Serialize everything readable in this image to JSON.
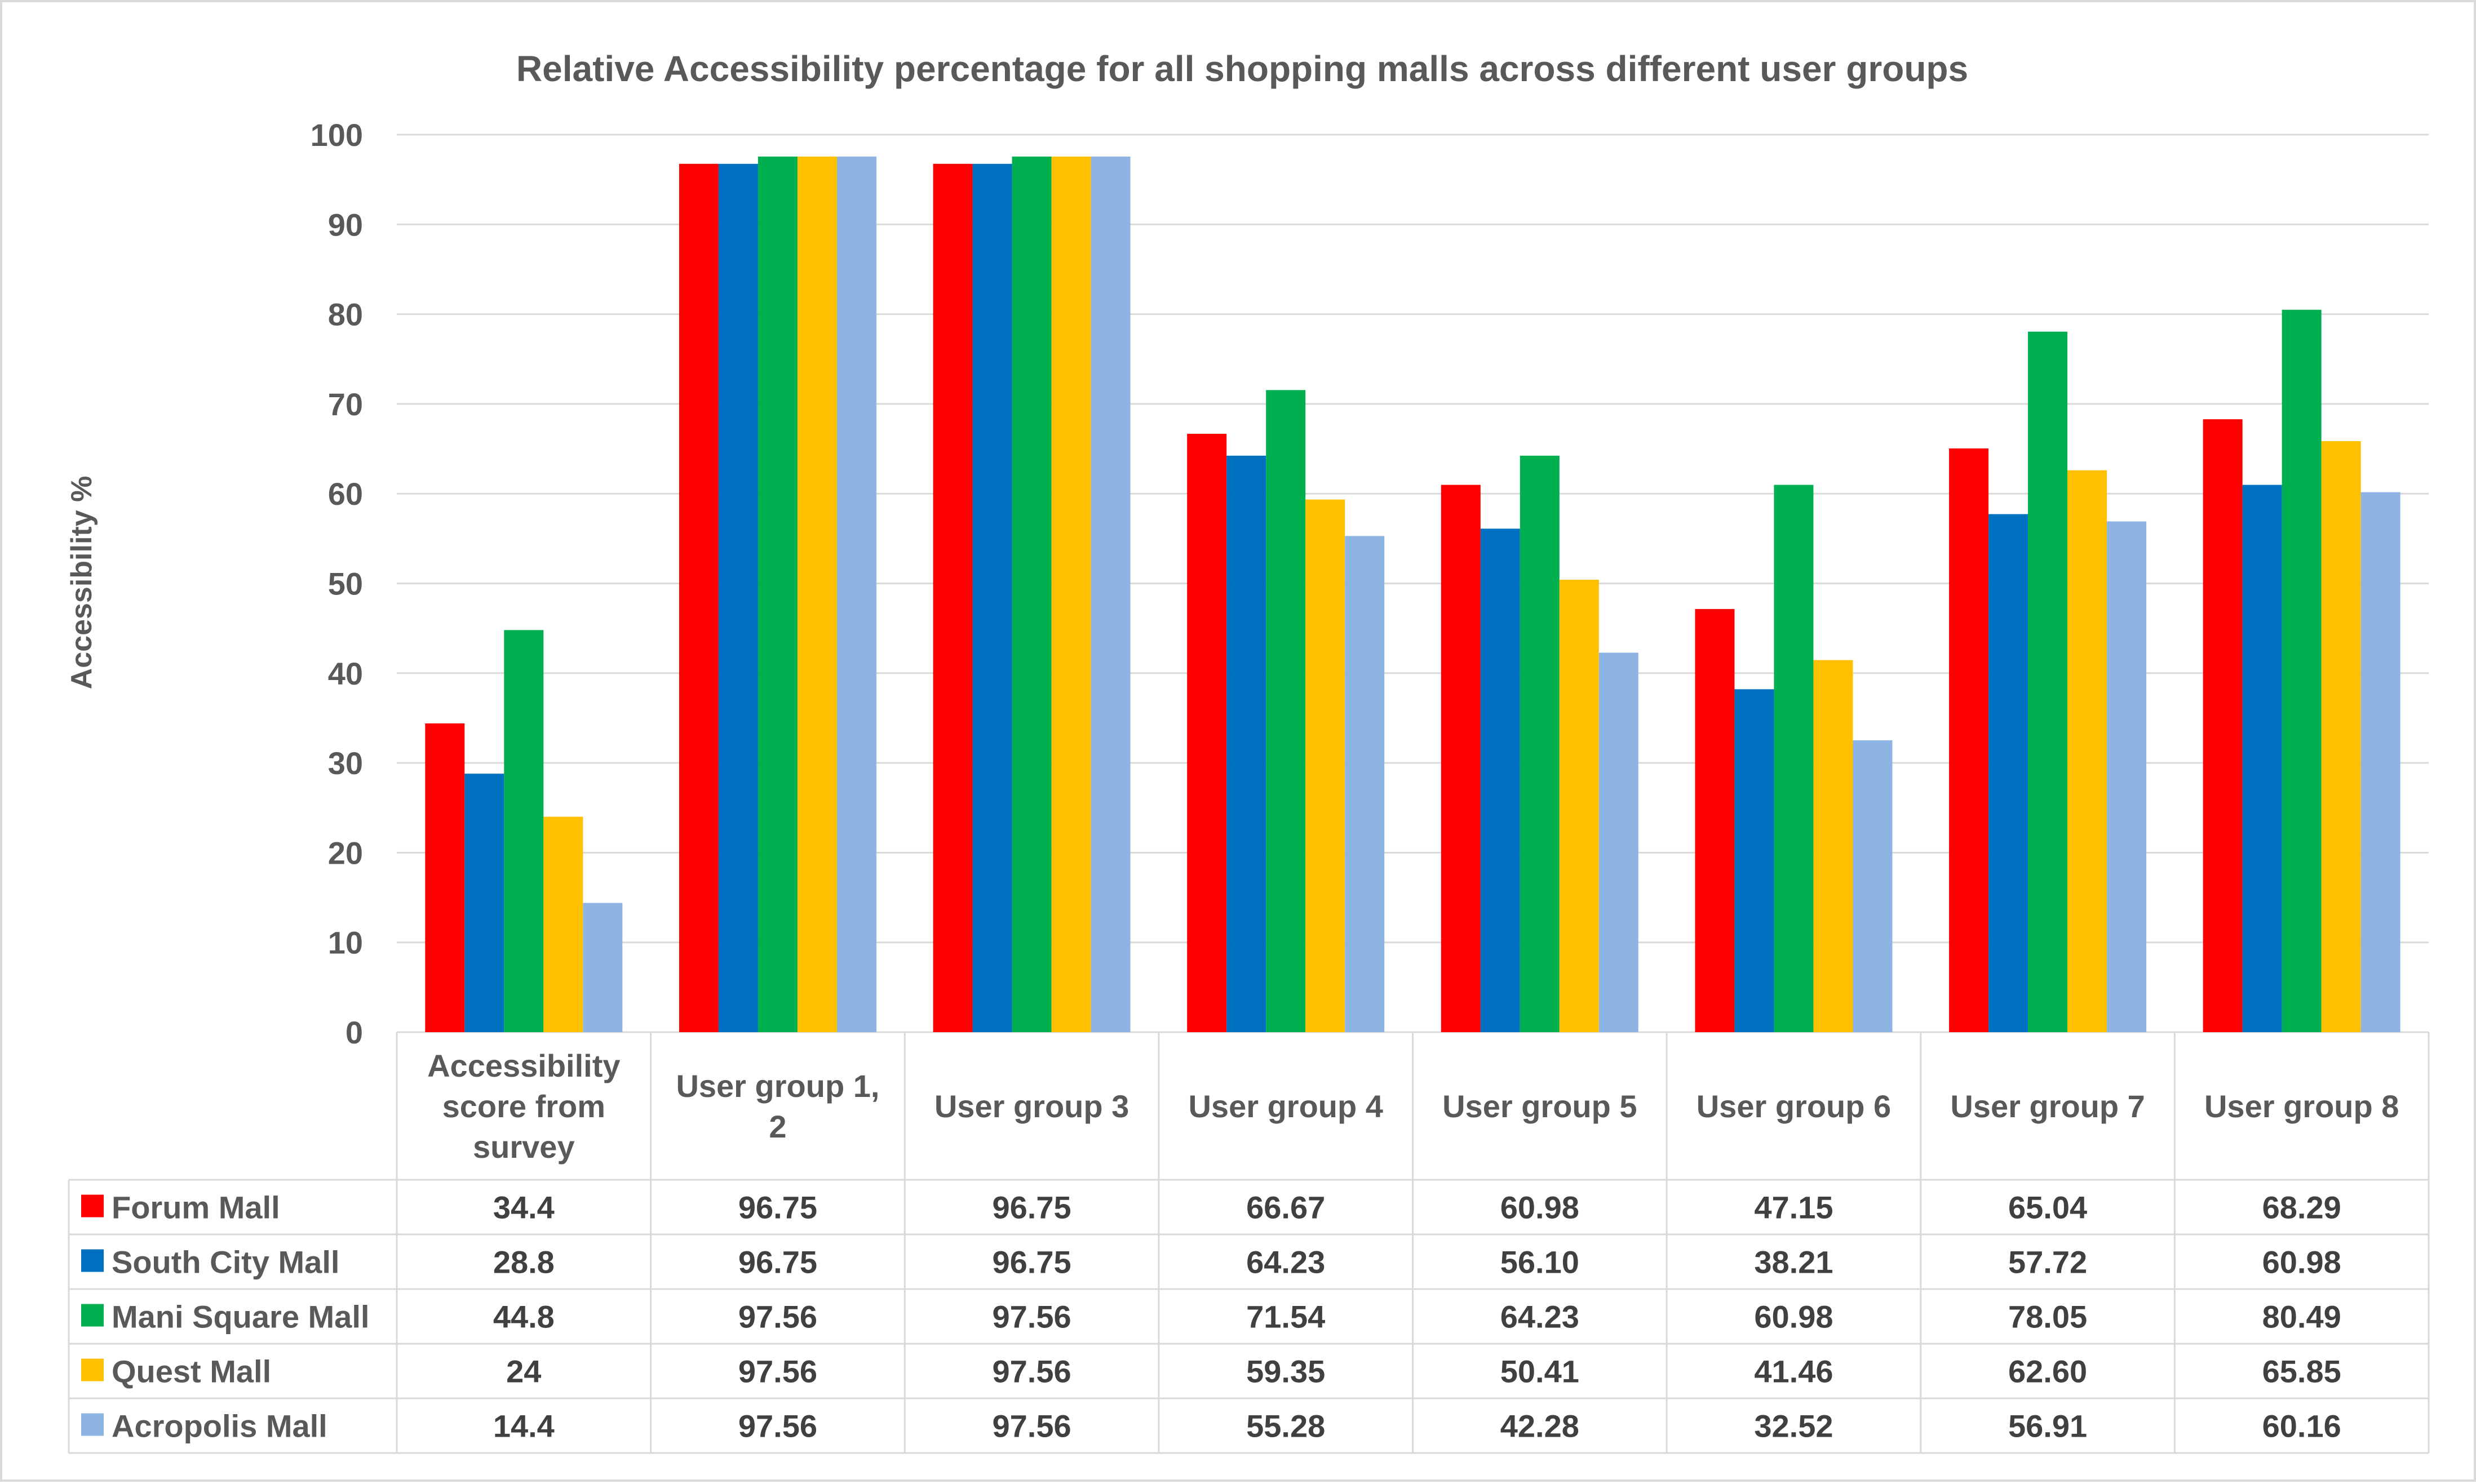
{
  "chart_data": {
    "type": "bar",
    "title": "Relative Accessibility percentage for all shopping malls across different user groups",
    "ylabel": "Accessibility %",
    "xlabel": "",
    "ylim": [
      0,
      100
    ],
    "yticks": [
      "0",
      "10",
      "20",
      "30",
      "40",
      "50",
      "60",
      "70",
      "80",
      "90",
      "100"
    ],
    "grid": true,
    "legend_placement": "data-table",
    "categories": [
      [
        "Accessibility",
        "score from",
        "survey"
      ],
      [
        "User group 1,",
        "2"
      ],
      [
        "User group 3"
      ],
      [
        "User group 4"
      ],
      [
        "User group 5"
      ],
      [
        "User group 6"
      ],
      [
        "User group 7"
      ],
      [
        "User group 8"
      ]
    ],
    "series": [
      {
        "name": "Forum Mall",
        "color": "#ff0000",
        "values": [
          34.4,
          96.75,
          96.75,
          66.67,
          60.98,
          47.15,
          65.04,
          68.29
        ],
        "labels": [
          "34.4",
          "96.75",
          "96.75",
          "66.67",
          "60.98",
          "47.15",
          "65.04",
          "68.29"
        ]
      },
      {
        "name": "South City Mall",
        "color": "#0070c0",
        "values": [
          28.8,
          96.75,
          96.75,
          64.23,
          56.1,
          38.21,
          57.72,
          60.98
        ],
        "labels": [
          "28.8",
          "96.75",
          "96.75",
          "64.23",
          "56.10",
          "38.21",
          "57.72",
          "60.98"
        ]
      },
      {
        "name": "Mani Square Mall",
        "color": "#00b050",
        "values": [
          44.8,
          97.56,
          97.56,
          71.54,
          64.23,
          60.98,
          78.05,
          80.49
        ],
        "labels": [
          "44.8",
          "97.56",
          "97.56",
          "71.54",
          "64.23",
          "60.98",
          "78.05",
          "80.49"
        ]
      },
      {
        "name": "Quest Mall",
        "color": "#ffc000",
        "values": [
          24,
          97.56,
          97.56,
          59.35,
          50.41,
          41.46,
          62.6,
          65.85
        ],
        "labels": [
          "24",
          "97.56",
          "97.56",
          "59.35",
          "50.41",
          "41.46",
          "62.60",
          "65.85"
        ]
      },
      {
        "name": "Acropolis Mall",
        "color": "#8eb4e3",
        "values": [
          14.4,
          97.56,
          97.56,
          55.28,
          42.28,
          32.52,
          56.91,
          60.16
        ],
        "labels": [
          "14.4",
          "97.56",
          "97.56",
          "55.28",
          "42.28",
          "32.52",
          "56.91",
          "60.16"
        ]
      }
    ]
  }
}
